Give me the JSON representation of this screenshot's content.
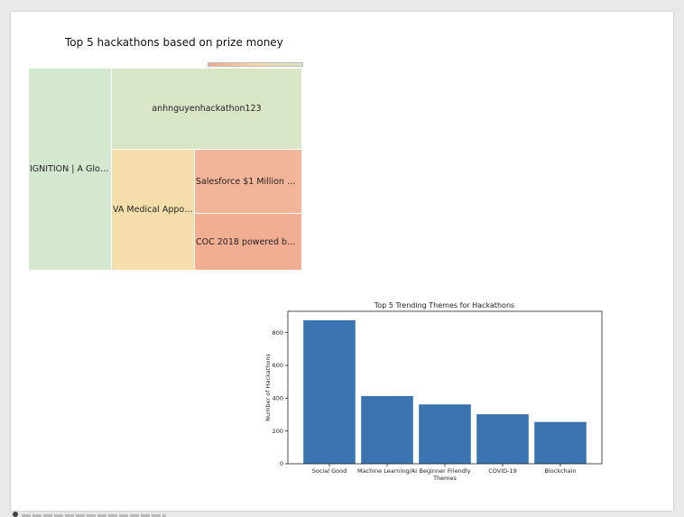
{
  "treemap": {
    "title": "Top 5 hackathons based on prize money",
    "tiles": [
      {
        "label": "IGNITION | A Glob…",
        "color": "#d3e8cf"
      },
      {
        "label": "anhnguyenhackathon123",
        "color": "#d8e6c6"
      },
      {
        "label": "VA Medical Appoin…",
        "color": "#f6deac"
      },
      {
        "label": "Salesforce $1 Million Ha…",
        "color": "#f3b59a"
      },
      {
        "label": "COC 2018 powered by…",
        "color": "#f1ae93"
      }
    ]
  },
  "chart_data": {
    "type": "bar",
    "title": "Top 5 Trending Themes for Hackathons",
    "xlabel": "Themes",
    "ylabel": "Number of Hackathons",
    "categories": [
      "Social Good",
      "Machine Learning/AI",
      "Beginner Friendly",
      "COVID-19",
      "Blockchain"
    ],
    "values": [
      875,
      413,
      362,
      302,
      255
    ],
    "ylim": [
      0,
      930
    ],
    "yticks": [
      0,
      200,
      400,
      600,
      800
    ],
    "bar_color": "#3a74b0",
    "grid": false
  }
}
